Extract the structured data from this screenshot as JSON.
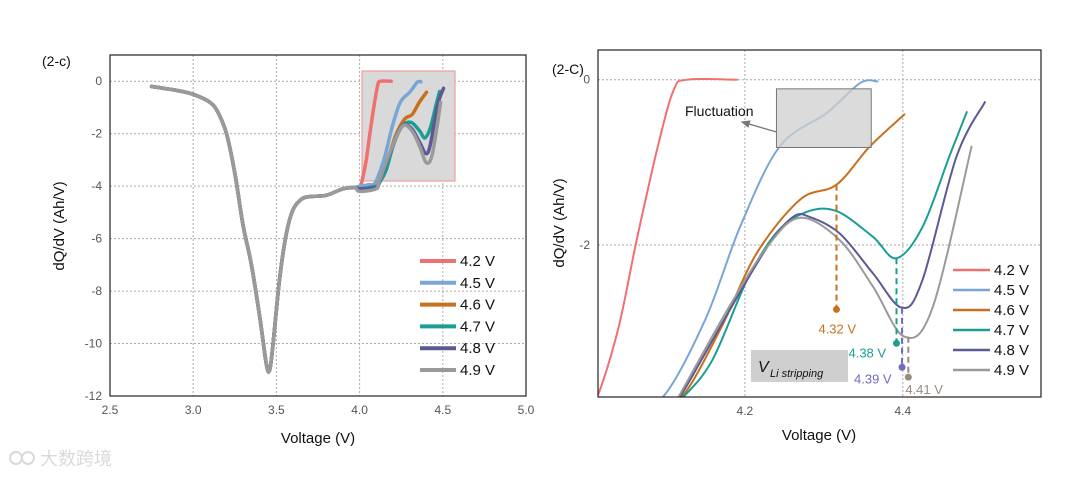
{
  "chart_data": [
    {
      "type": "line",
      "panel_label": "(2-c)",
      "xlabel": "Voltage (V)",
      "ylabel": "dQ/dV (Ah/V)",
      "xlim": [
        2.5,
        5.0
      ],
      "ylim": [
        -12,
        1
      ],
      "xticks": [
        "2.5",
        "3.0",
        "3.5",
        "4.0",
        "4.5",
        "5.0"
      ],
      "yticks": [
        "0",
        "-2",
        "-4",
        "-6",
        "-8",
        "-10",
        "-12"
      ],
      "grid": true,
      "legend_position": "bottom-right",
      "highlight_region": {
        "x": [
          4.01,
          4.57
        ],
        "y": [
          -3.8,
          0.4
        ]
      }
    },
    {
      "type": "line",
      "panel_label": "(2-C)",
      "xlabel": "Voltage (V)",
      "ylabel": "dQ/dV (Ah/V)",
      "xlim": [
        4.014,
        4.575
      ],
      "ylim": [
        -3.84,
        0.36
      ],
      "xticks": [
        "4.2",
        "4.4"
      ],
      "yticks": [
        "0",
        "-2"
      ],
      "grid": true,
      "legend_position": "bottom-right",
      "annotations": {
        "fluctuation": {
          "text": "Fluctuation",
          "box_x": [
            4.24,
            4.36
          ],
          "box_y": [
            -0.82,
            -0.11
          ]
        },
        "v_li_stripping": {
          "symbol": "V",
          "subscript": "Li stripping"
        },
        "markers": [
          {
            "label": "4.32 V",
            "x": 4.316,
            "from": -1.27,
            "to": -2.78,
            "color": "#c8701e"
          },
          {
            "label": "4.38 V",
            "x": 4.392,
            "from": -2.16,
            "to": -3.19,
            "color": "#1a9e94"
          },
          {
            "label": "4.39 V",
            "x": 4.399,
            "from": -2.76,
            "to": -3.48,
            "color": "#6f6cc0"
          },
          {
            "label": "4.41 V",
            "x": 4.407,
            "from": -3.11,
            "to": -3.6,
            "color": "#9a8a80"
          }
        ]
      }
    }
  ],
  "shared_curve": [
    [
      2.75,
      -0.2
    ],
    [
      2.9,
      -0.35
    ],
    [
      3.0,
      -0.5
    ],
    [
      3.1,
      -0.8
    ],
    [
      3.15,
      -1.2
    ],
    [
      3.2,
      -2.0
    ],
    [
      3.25,
      -3.5
    ],
    [
      3.3,
      -5.5
    ],
    [
      3.35,
      -7.0
    ],
    [
      3.4,
      -9.0
    ],
    [
      3.44,
      -10.8
    ],
    [
      3.46,
      -11.0
    ],
    [
      3.48,
      -10.0
    ],
    [
      3.52,
      -7.5
    ],
    [
      3.56,
      -5.8
    ],
    [
      3.6,
      -4.9
    ],
    [
      3.65,
      -4.5
    ],
    [
      3.7,
      -4.4
    ],
    [
      3.8,
      -4.35
    ],
    [
      3.9,
      -4.1
    ],
    [
      3.97,
      -4.05
    ]
  ],
  "series": [
    {
      "name": "4.2 V",
      "color": "#f07070",
      "tail": [
        [
          4.0,
          -4.05
        ],
        [
          4.014,
          -3.82
        ],
        [
          4.04,
          -3.0
        ],
        [
          4.063,
          -1.94
        ],
        [
          4.09,
          -0.8
        ],
        [
          4.11,
          -0.12
        ],
        [
          4.127,
          0
        ],
        [
          4.19,
          0
        ]
      ]
    },
    {
      "name": "4.5 V",
      "color": "#7aa6d6",
      "tail": [
        [
          4.0,
          -4.0
        ],
        [
          4.05,
          -3.95
        ],
        [
          4.096,
          -3.84
        ],
        [
          4.15,
          -2.9
        ],
        [
          4.194,
          -1.78
        ],
        [
          4.244,
          -0.81
        ],
        [
          4.304,
          -0.4
        ],
        [
          4.346,
          -0.04
        ],
        [
          4.368,
          -0.02
        ]
      ]
    },
    {
      "name": "4.6 V",
      "color": "#c8701e",
      "tail": [
        [
          4.0,
          -4.1
        ],
        [
          4.08,
          -4.1
        ],
        [
          4.122,
          -3.82
        ],
        [
          4.17,
          -3.0
        ],
        [
          4.215,
          -2.1
        ],
        [
          4.27,
          -1.45
        ],
        [
          4.316,
          -1.27
        ],
        [
          4.358,
          -0.81
        ],
        [
          4.402,
          -0.42
        ]
      ]
    },
    {
      "name": "4.7 V",
      "color": "#1a9e94",
      "tail": [
        [
          4.0,
          -4.1
        ],
        [
          4.1,
          -4.0
        ],
        [
          4.122,
          -3.84
        ],
        [
          4.159,
          -3.39
        ],
        [
          4.203,
          -2.42
        ],
        [
          4.24,
          -1.85
        ],
        [
          4.278,
          -1.6
        ],
        [
          4.316,
          -1.59
        ],
        [
          4.362,
          -1.9
        ],
        [
          4.392,
          -2.16
        ],
        [
          4.425,
          -1.78
        ],
        [
          4.46,
          -0.9
        ],
        [
          4.481,
          -0.39
        ]
      ]
    },
    {
      "name": "4.8 V",
      "color": "#5b5a94",
      "tail": [
        [
          4.0,
          -4.1
        ],
        [
          4.1,
          -4.05
        ],
        [
          4.118,
          -3.84
        ],
        [
          4.18,
          -2.8
        ],
        [
          4.23,
          -2.0
        ],
        [
          4.261,
          -1.66
        ],
        [
          4.282,
          -1.66
        ],
        [
          4.32,
          -1.86
        ],
        [
          4.362,
          -2.34
        ],
        [
          4.399,
          -2.76
        ],
        [
          4.425,
          -2.42
        ],
        [
          4.468,
          -0.93
        ],
        [
          4.504,
          -0.27
        ]
      ]
    },
    {
      "name": "4.9 V",
      "color": "#9a9a9a",
      "tail": [
        [
          4.0,
          -4.2
        ],
        [
          4.1,
          -4.1
        ],
        [
          4.116,
          -3.84
        ],
        [
          4.18,
          -2.75
        ],
        [
          4.23,
          -2.0
        ],
        [
          4.27,
          -1.67
        ],
        [
          4.32,
          -1.94
        ],
        [
          4.362,
          -2.5
        ],
        [
          4.402,
          -3.11
        ],
        [
          4.438,
          -2.75
        ],
        [
          4.487,
          -0.81
        ]
      ]
    }
  ],
  "watermark": "大数跨境"
}
